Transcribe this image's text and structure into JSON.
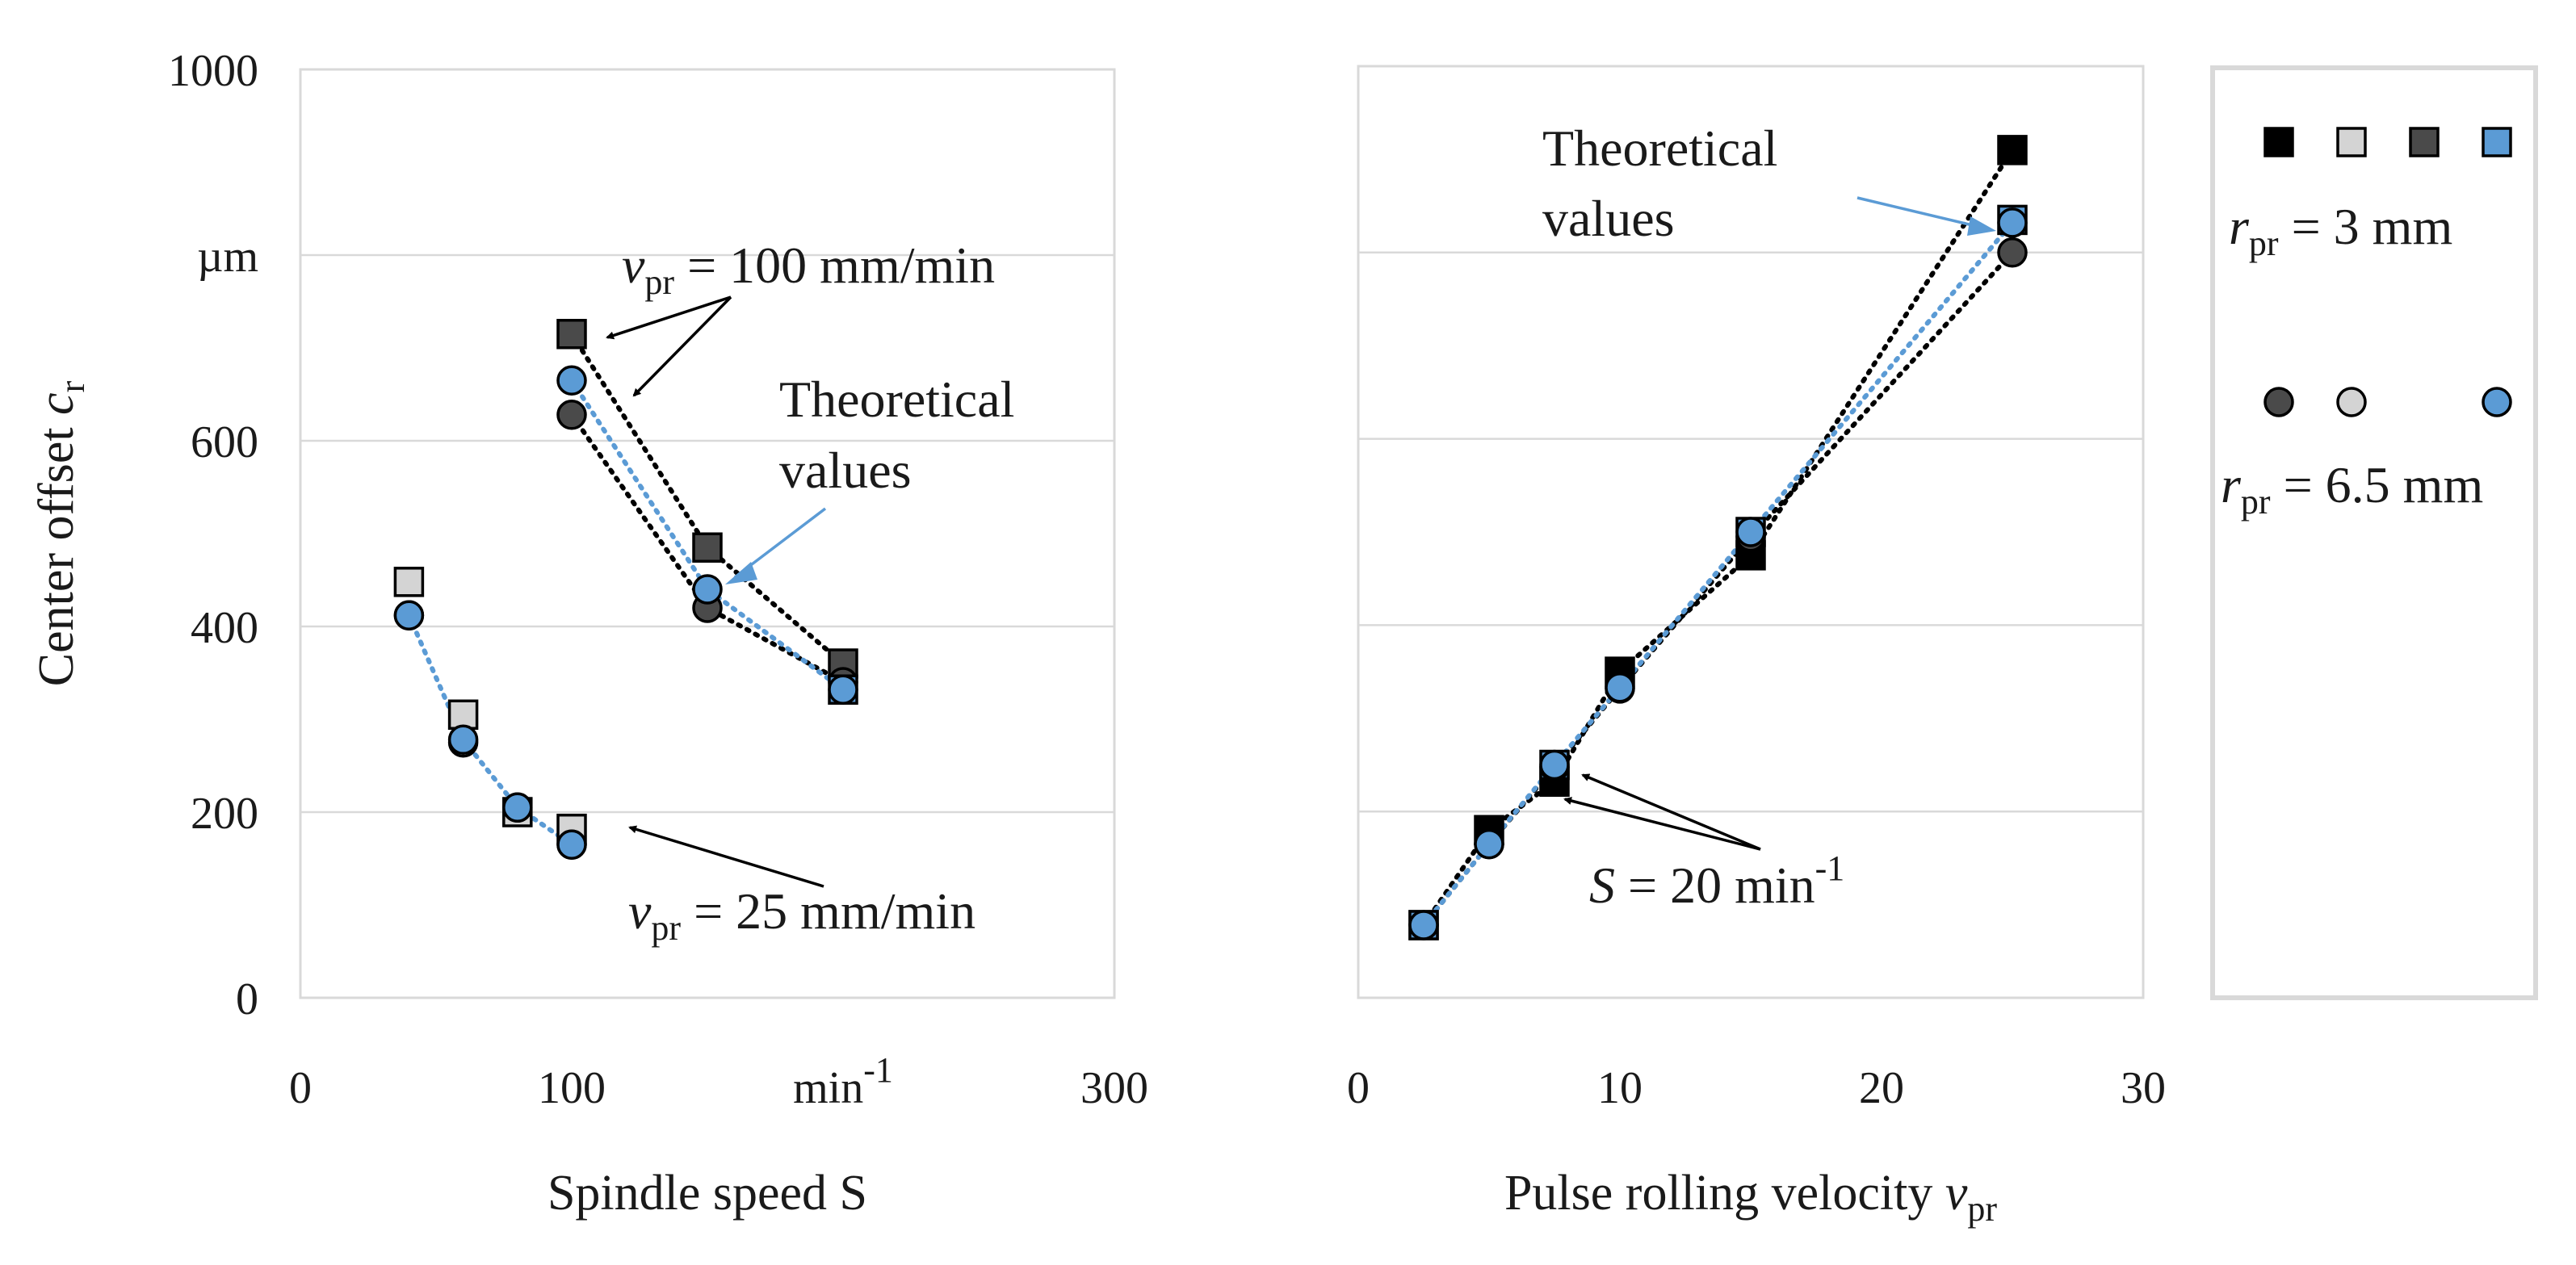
{
  "colors": {
    "black": "#000000",
    "light_gray": "#d4d4d4",
    "dark_gray": "#4a4a4a",
    "blue": "#5b9bd5",
    "grid": "#d9d9d9"
  },
  "chart_data": [
    {
      "type": "scatter",
      "title": "",
      "xlabel": "Spindle speed S",
      "ylabel_main": "Center offset ",
      "ylabel_symbol": "c",
      "ylabel_sub": "r",
      "xlim": [
        0,
        300
      ],
      "ylim": [
        0,
        1000
      ],
      "x_ticks": [
        {
          "value": 0,
          "label": "0"
        },
        {
          "value": 100,
          "label": "100"
        },
        {
          "value": 200,
          "label": "min-1"
        },
        {
          "value": 300,
          "label": "300"
        }
      ],
      "y_ticks": [
        {
          "value": 0,
          "label": "0"
        },
        {
          "value": 200,
          "label": "200"
        },
        {
          "value": 400,
          "label": "400"
        },
        {
          "value": 600,
          "label": "600"
        },
        {
          "value": 800,
          "label": "µm"
        },
        {
          "value": 1000,
          "label": "1000"
        }
      ],
      "series": [
        {
          "name": "vpr = 25 mm/min, rpr = 3 mm",
          "marker": "square",
          "color": "#d4d4d4",
          "x": [
            40,
            60,
            80,
            100
          ],
          "y": [
            448,
            305,
            200,
            182
          ],
          "trend": false
        },
        {
          "name": "vpr = 25 mm/min, rpr = 6.5 mm",
          "marker": "circle",
          "color": "#d4d4d4",
          "x": [
            40,
            60,
            80,
            100
          ],
          "y": [
            412,
            275,
            205,
            165
          ],
          "trend": false
        },
        {
          "name": "vpr = 25 mm/min, theoretical",
          "marker": "circle",
          "color": "#5b9bd5",
          "x": [
            40,
            60,
            80,
            100
          ],
          "y": [
            412,
            278,
            205,
            165
          ],
          "trend": true,
          "trend_color": "#5b9bd5"
        },
        {
          "name": "vpr = 100 mm/min, rpr = 3 mm",
          "marker": "square",
          "color": "#4a4a4a",
          "x": [
            100,
            150,
            200
          ],
          "y": [
            715,
            485,
            360
          ],
          "trend": true,
          "trend_color": "#000000"
        },
        {
          "name": "vpr = 100 mm/min, rpr = 6.5 mm",
          "marker": "circle",
          "color": "#4a4a4a",
          "x": [
            100,
            150,
            200
          ],
          "y": [
            628,
            420,
            340
          ],
          "trend": true,
          "trend_color": "#000000"
        },
        {
          "name": "vpr = 100 mm/min, theoretical (square)",
          "marker": "square",
          "color": "#5b9bd5",
          "x": [
            200
          ],
          "y": [
            332
          ],
          "trend": false
        },
        {
          "name": "vpr = 100 mm/min, theoretical",
          "marker": "circle",
          "color": "#5b9bd5",
          "x": [
            100,
            150,
            200
          ],
          "y": [
            665,
            440,
            332
          ],
          "trend": true,
          "trend_color": "#5b9bd5"
        }
      ],
      "annotations": [
        {
          "id": "v100",
          "prefix": "v",
          "sub": "pr",
          "suffix": " = 100 mm/min"
        },
        {
          "id": "theo",
          "line1": "Theoretical",
          "line2": "values"
        },
        {
          "id": "v25",
          "prefix": "v",
          "sub": "pr",
          "suffix": " = 25 mm/min"
        }
      ]
    },
    {
      "type": "scatter",
      "title": "",
      "xlabel_main": "Pulse rolling velocity ",
      "xlabel_symbol": "v",
      "xlabel_sub": "pr",
      "xlim": [
        0,
        30
      ],
      "ylim": [
        0,
        1000
      ],
      "x_ticks": [
        {
          "value": 0,
          "label": "0"
        },
        {
          "value": 10,
          "label": "10"
        },
        {
          "value": 20,
          "label": "20"
        },
        {
          "value": 30,
          "label": "30"
        }
      ],
      "series": [
        {
          "name": "S = 20 min-1, rpr = 3 mm",
          "marker": "square",
          "color": "#000000",
          "x": [
            2.5,
            5,
            7.5,
            10,
            15,
            25
          ],
          "y": [
            78,
            180,
            232,
            350,
            475,
            910
          ],
          "trend": true,
          "trend_color": "#000000"
        },
        {
          "name": "S = 20 min-1, rpr = 3 mm (theoretical)",
          "marker": "square",
          "color": "#5b9bd5",
          "x": [
            2.5,
            7.5,
            15,
            25
          ],
          "y": [
            78,
            250,
            500,
            835
          ],
          "trend": false
        },
        {
          "name": "S = 20 min-1, rpr = 6.5 mm",
          "marker": "circle",
          "color": "#4a4a4a",
          "x": [
            2.5,
            5,
            7.5,
            10,
            15,
            25
          ],
          "y": [
            78,
            165,
            248,
            332,
            495,
            800
          ],
          "trend": true,
          "trend_color": "#000000"
        },
        {
          "name": "S = 20 min-1, theoretical",
          "marker": "circle",
          "color": "#5b9bd5",
          "x": [
            2.5,
            5,
            7.5,
            10,
            15,
            25
          ],
          "y": [
            78,
            165,
            250,
            333,
            500,
            832
          ],
          "trend": true,
          "trend_color": "#5b9bd5"
        }
      ],
      "annotations": [
        {
          "id": "theo",
          "line1": "Theoretical",
          "line2": "values"
        },
        {
          "id": "s20",
          "prefix": "S",
          "suffix": " = 20  min",
          "sup": "-1"
        }
      ]
    }
  ],
  "legend": {
    "placement": "right",
    "row1": {
      "markers": [
        "#000000",
        "#d4d4d4",
        "#4a4a4a",
        "#5b9bd5"
      ],
      "shape": "square",
      "label_prefix": "r",
      "label_sub": "pr",
      "label_suffix": " = 3 mm"
    },
    "row2": {
      "markers": [
        "#4a4a4a",
        "#d4d4d4",
        "",
        "#5b9bd5"
      ],
      "shape": "circle",
      "label_prefix": "r",
      "label_sub": "pr",
      "label_suffix": " = 6.5 mm"
    }
  }
}
